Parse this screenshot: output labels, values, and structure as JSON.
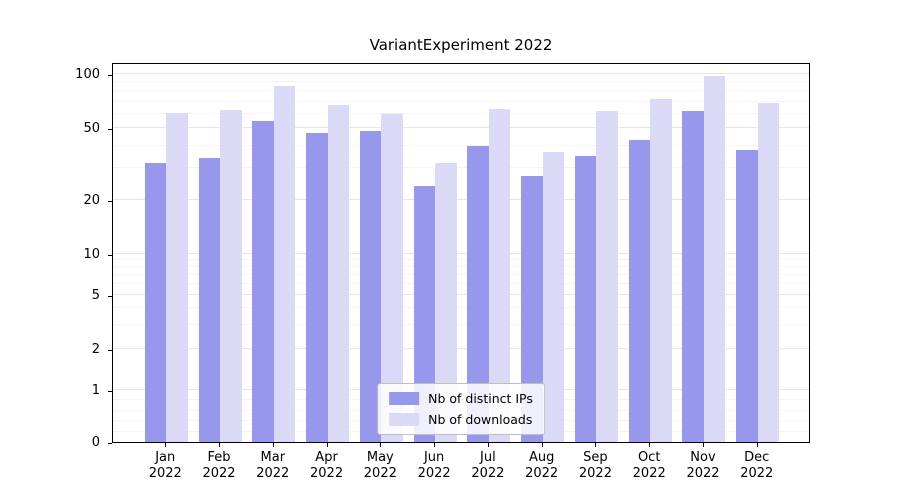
{
  "title": "VariantExperiment 2022",
  "chart_data": {
    "type": "bar",
    "title": "VariantExperiment 2022",
    "yscale": "symlog",
    "grid": true,
    "categories": [
      "Jan",
      "Feb",
      "Mar",
      "Apr",
      "May",
      "Jun",
      "Jul",
      "Aug",
      "Sep",
      "Oct",
      "Nov",
      "Dec"
    ],
    "year_label": "2022",
    "series": [
      {
        "name": "Nb of distinct IPs",
        "color": "#9797eb",
        "values": [
          32,
          34,
          55,
          47,
          48,
          24,
          40,
          27,
          35,
          43,
          62,
          38
        ]
      },
      {
        "name": "Nb of downloads",
        "color": "#dadaf7",
        "values": [
          61,
          63,
          86,
          67,
          60,
          32,
          64,
          37,
          62,
          73,
          97,
          69
        ]
      }
    ],
    "yticks": [
      0,
      1,
      2,
      5,
      10,
      20,
      50,
      100
    ],
    "y_minor_ticks": [
      0.2,
      0.4,
      0.6,
      0.8,
      3,
      4,
      6,
      7,
      8,
      9,
      30,
      40,
      60,
      70,
      80,
      90
    ],
    "ylim": [
      0,
      117
    ],
    "legend_position": "lower center"
  },
  "colors": {
    "grid_major": "#e6e6e6",
    "grid_minor": "#f4f4f4",
    "axis": "#000000",
    "background": "#ffffff"
  }
}
